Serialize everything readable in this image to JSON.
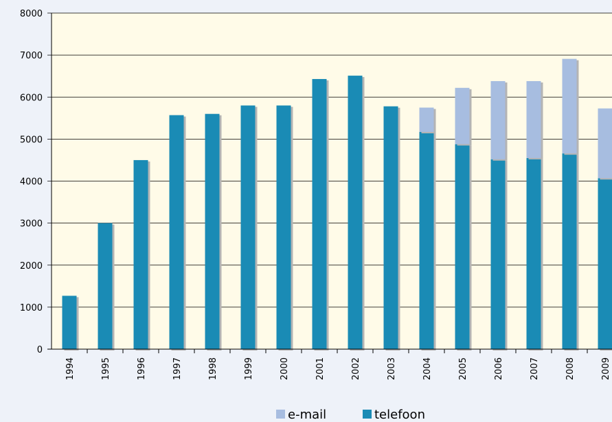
{
  "chart_data": {
    "type": "stacked-bar",
    "categories": [
      "1994",
      "1995",
      "1996",
      "1997",
      "1998",
      "1999",
      "2000",
      "2001",
      "2002",
      "2003",
      "2004",
      "2005",
      "2006",
      "2007",
      "2008",
      "2009"
    ],
    "series": [
      {
        "name": "e-mail",
        "color": "#a7bde0",
        "values": [
          null,
          null,
          null,
          null,
          null,
          null,
          null,
          null,
          null,
          null,
          580,
          1340,
          1860,
          1830,
          2250,
          1660
        ]
      },
      {
        "name": "telefoon",
        "color": "#1a8bb5",
        "values": [
          1270,
          3000,
          4500,
          5570,
          5600,
          5800,
          5800,
          6430,
          6510,
          5780,
          5170,
          4880,
          4520,
          4550,
          4660,
          4070
        ]
      }
    ],
    "ylim": [
      0,
      8000
    ],
    "yticks": [
      0,
      1000,
      2000,
      3000,
      4000,
      5000,
      6000,
      7000,
      8000
    ],
    "grid": true,
    "legend": "bottom"
  }
}
